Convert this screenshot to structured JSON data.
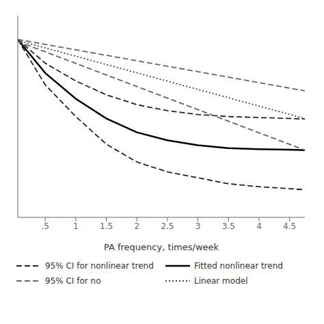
{
  "chart_data": {
    "type": "line",
    "xlabel": "PA frequency, times/week",
    "xlim": [
      0.05,
      4.75
    ],
    "xticks": [
      {
        "value": 0.5,
        "label": ".5"
      },
      1,
      1.5,
      2,
      2.5,
      3,
      3.5,
      4,
      4.5
    ],
    "ylim": [
      0.1,
      1.12
    ],
    "yticks": [],
    "tick_labels": "x",
    "series": [
      {
        "name": "95% CI for nonlinear trend",
        "color": "#222222",
        "line_style": "dashed",
        "x": [
          0.05,
          0.5,
          1.0,
          1.5,
          2.0,
          2.5,
          3.0,
          3.5,
          4.0,
          4.5,
          4.75
        ],
        "values": [
          1.0,
          0.88,
          0.79,
          0.72,
          0.67,
          0.64,
          0.62,
          0.61,
          0.605,
          0.6,
          0.598
        ]
      },
      {
        "color": "#222222",
        "line_style": "dashed",
        "x": [
          0.05,
          0.5,
          1.0,
          1.5,
          2.0,
          2.5,
          3.0,
          3.5,
          4.0,
          4.5,
          4.75
        ],
        "values": [
          1.0,
          0.77,
          0.61,
          0.47,
          0.38,
          0.33,
          0.3,
          0.27,
          0.255,
          0.245,
          0.24
        ]
      },
      {
        "name": "Fitted nonlinear trend",
        "color": "#000000",
        "line_style": "solid",
        "x": [
          0.05,
          0.5,
          1.0,
          1.5,
          2.0,
          2.5,
          3.0,
          3.5,
          4.0,
          4.5,
          4.75
        ],
        "values": [
          1.0,
          0.83,
          0.7,
          0.6,
          0.53,
          0.49,
          0.465,
          0.45,
          0.445,
          0.442,
          0.44
        ]
      },
      {
        "name": "95% CI for no",
        "color": "#666666",
        "line_style": "dashed",
        "x": [
          0.05,
          4.75
        ],
        "values": [
          1.0,
          0.74
        ]
      },
      {
        "color": "#666666",
        "line_style": "dashed",
        "x": [
          0.05,
          4.75
        ],
        "values": [
          0.99,
          0.44
        ]
      },
      {
        "name": "Linear model",
        "color": "#444444",
        "line_style": "dotted",
        "x": [
          0.05,
          4.75
        ],
        "values": [
          0.995,
          0.6
        ]
      }
    ]
  }
}
